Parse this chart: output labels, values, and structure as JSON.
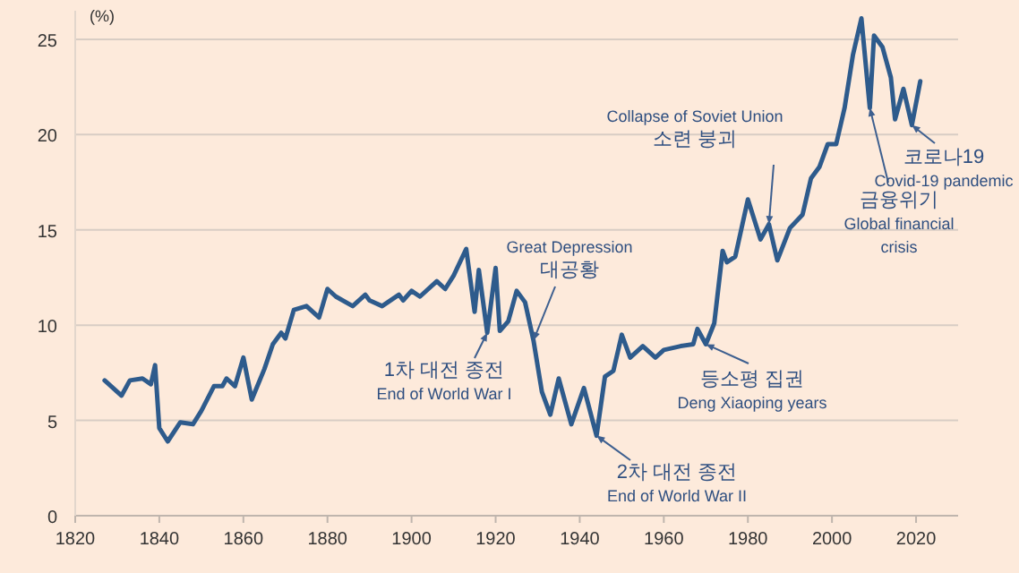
{
  "chart_data": {
    "type": "line",
    "ylabel": "(%)",
    "x": [
      1827,
      1831,
      1833,
      1836,
      1838,
      1839,
      1840,
      1842,
      1845,
      1848,
      1850,
      1853,
      1855,
      1856,
      1858,
      1860,
      1862,
      1865,
      1867,
      1869,
      1870,
      1872,
      1875,
      1878,
      1880,
      1882,
      1886,
      1889,
      1890,
      1893,
      1897,
      1898,
      1900,
      1902,
      1906,
      1908,
      1910,
      1913,
      1915,
      1916,
      1918,
      1920,
      1921,
      1923,
      1925,
      1927,
      1929,
      1931,
      1933,
      1935,
      1938,
      1941,
      1944,
      1946,
      1948,
      1950,
      1952,
      1955,
      1958,
      1960,
      1964,
      1967,
      1968,
      1970,
      1972,
      1974,
      1975,
      1977,
      1980,
      1983,
      1985,
      1987,
      1990,
      1993,
      1995,
      1997,
      1999,
      2001,
      2003,
      2005,
      2007,
      2009,
      2010,
      2012,
      2014,
      2015,
      2017,
      2019,
      2021
    ],
    "series": [
      {
        "color": "#2e5b8c",
        "values": [
          7.1,
          6.3,
          7.1,
          7.2,
          6.9,
          7.9,
          4.6,
          3.9,
          4.9,
          4.8,
          5.5,
          6.8,
          6.8,
          7.2,
          6.8,
          8.3,
          6.1,
          7.7,
          9.0,
          9.6,
          9.3,
          10.8,
          11.0,
          10.4,
          11.9,
          11.5,
          11.0,
          11.6,
          11.3,
          11.0,
          11.6,
          11.3,
          11.8,
          11.5,
          12.3,
          11.9,
          12.6,
          14.0,
          10.7,
          12.9,
          9.6,
          13.0,
          9.7,
          10.2,
          11.8,
          11.2,
          9.2,
          6.5,
          5.3,
          7.2,
          4.8,
          6.7,
          4.2,
          7.3,
          7.6,
          9.5,
          8.3,
          8.9,
          8.3,
          8.7,
          8.9,
          9.0,
          9.8,
          9.0,
          10.1,
          13.9,
          13.3,
          13.6,
          16.6,
          14.5,
          15.3,
          13.4,
          15.1,
          15.8,
          17.7,
          18.3,
          19.5,
          19.5,
          21.4,
          24.2,
          26.1,
          21.4,
          25.2,
          24.6,
          23.0,
          20.8,
          22.4,
          20.5,
          22.8
        ]
      }
    ],
    "xlim": [
      1820,
      2030
    ],
    "ylim": [
      0,
      26.5
    ],
    "xticks": [
      1820,
      1840,
      1860,
      1880,
      1900,
      1920,
      1940,
      1960,
      1980,
      2000,
      2020
    ],
    "yticks": [
      0,
      5,
      10,
      15,
      20,
      25
    ],
    "grid": "y",
    "marker": "none",
    "line_style": "solid",
    "annotations": [
      {
        "text": "1차 대전 종전\nEnd of World War I",
        "x": 1918,
        "y": 9.6
      },
      {
        "text": "Great Depression\n대공황",
        "x": 1929,
        "y": 9.2
      },
      {
        "text": "2차 대전 종전\nEnd of World War II",
        "x": 1944,
        "y": 4.2
      },
      {
        "text": "등소평 집권\nDeng Xiaoping years",
        "x": 1970,
        "y": 9.0
      },
      {
        "text": "Collapse of Soviet Union\n소련 붕괴",
        "x": 1985,
        "y": 15.3
      },
      {
        "text": "금융위기\nGlobal financial\ncrisis",
        "x": 2009,
        "y": 21.4
      },
      {
        "text": "코로나19\nCovid-19 pandemic",
        "x": 2019,
        "y": 20.5
      }
    ]
  }
}
